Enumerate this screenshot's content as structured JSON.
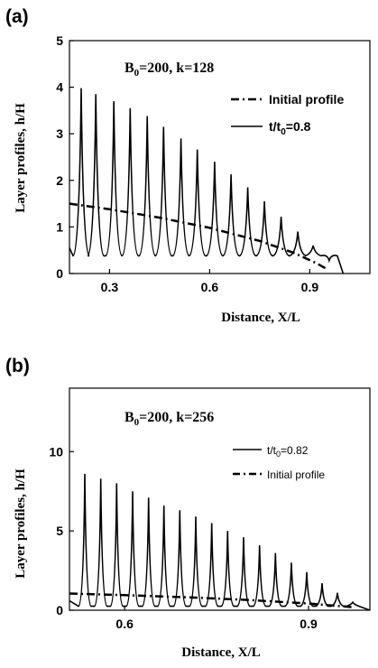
{
  "chart_data": [
    {
      "type": "line",
      "panel_label": "(a)",
      "annotation": {
        "text": "B",
        "sub": "0",
        "rest": "=200, k=128"
      },
      "xlabel": "Distance, X/L",
      "ylabel": "Layer profiles, h/H",
      "xlim": [
        0.18,
        1.08
      ],
      "ylim": [
        0,
        5
      ],
      "xticks": [
        0.3,
        0.6,
        0.9
      ],
      "xtick_labels": [
        "0.3",
        "0.6",
        "0.9"
      ],
      "yticks": [
        0,
        1,
        2,
        3,
        4,
        5
      ],
      "ytick_labels": [
        "0",
        "1",
        "2",
        "3",
        "4",
        "5"
      ],
      "legend_position": "top-right",
      "series": [
        {
          "name": "Initial profile",
          "style": "dash-dot",
          "x": [
            0.18,
            0.3,
            0.45,
            0.6,
            0.75,
            0.85,
            0.92,
            0.95
          ],
          "y": [
            1.5,
            1.38,
            1.2,
            0.98,
            0.7,
            0.45,
            0.22,
            0.1
          ]
        },
        {
          "name": "t/t",
          "name_sub": "0",
          "name_rest": "=0.8",
          "style": "solid",
          "peaks_x": [
            0.215,
            0.259,
            0.313,
            0.362,
            0.413,
            0.462,
            0.514,
            0.563,
            0.615,
            0.664,
            0.714,
            0.764,
            0.814,
            0.864,
            0.91,
            0.958
          ],
          "peaks_y": [
            3.98,
            3.85,
            3.7,
            3.55,
            3.38,
            3.15,
            2.9,
            2.66,
            2.4,
            2.13,
            1.85,
            1.55,
            1.22,
            0.9,
            0.6,
            0.28
          ],
          "trough_y": 0.38,
          "x_start": 0.18,
          "y_start": 0.55,
          "x_end": 1.0
        }
      ]
    },
    {
      "type": "line",
      "panel_label": "(b)",
      "annotation": {
        "text": "B",
        "sub": "0",
        "rest": "=200, k=256"
      },
      "xlabel": "Distance, X/L",
      "ylabel": "Layer profiles, h/H",
      "xlim": [
        0.51,
        1.0
      ],
      "ylim": [
        0,
        14
      ],
      "xticks": [
        0.6,
        0.9
      ],
      "xtick_labels": [
        "0.6",
        "0.9"
      ],
      "yticks": [
        0,
        5,
        10
      ],
      "ytick_labels": [
        "0",
        "5",
        "10"
      ],
      "legend_position": "right",
      "series": [
        {
          "name": "t/t",
          "name_sub": "0",
          "name_rest": "=0.82",
          "style": "solid",
          "peaks_x": [
            0.535,
            0.561,
            0.587,
            0.613,
            0.639,
            0.664,
            0.69,
            0.716,
            0.742,
            0.768,
            0.794,
            0.82,
            0.846,
            0.872,
            0.897,
            0.922,
            0.947,
            0.972
          ],
          "peaks_y": [
            8.6,
            8.3,
            8.0,
            7.5,
            7.1,
            6.6,
            6.3,
            5.9,
            5.5,
            5.0,
            4.6,
            4.1,
            3.6,
            3.0,
            2.4,
            1.7,
            1.1,
            0.5
          ],
          "trough_y": 0.25,
          "x_start": 0.51,
          "y_start": 0.6,
          "x_end": 1.0
        },
        {
          "name": "Initial profile",
          "style": "dash-dot",
          "x": [
            0.51,
            0.6,
            0.7,
            0.8,
            0.9,
            0.97
          ],
          "y": [
            1.05,
            0.95,
            0.82,
            0.65,
            0.42,
            0.2
          ]
        }
      ]
    }
  ]
}
